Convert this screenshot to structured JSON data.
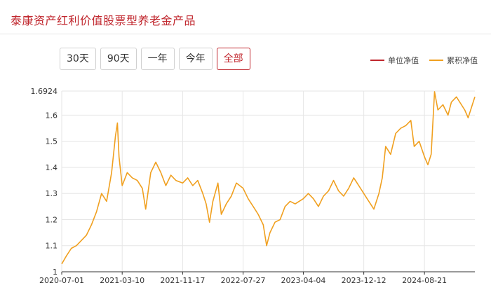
{
  "header": {
    "title": "泰康资产红利价值股票型养老金产品"
  },
  "tabs": [
    {
      "label": "30天",
      "active": false
    },
    {
      "label": "90天",
      "active": false
    },
    {
      "label": "一年",
      "active": false
    },
    {
      "label": "今年",
      "active": false
    },
    {
      "label": "全部",
      "active": true
    }
  ],
  "colors": {
    "accent": "#c0262d",
    "unit_nav": "#c0262d",
    "cumulative_nav": "#f0a020"
  },
  "chart_data": {
    "type": "line",
    "title": "",
    "xlabel": "",
    "ylabel": "",
    "ylim": [
      1,
      1.6924
    ],
    "y_ticks": [
      "1",
      "1.1",
      "1.2",
      "1.3",
      "1.4",
      "1.5",
      "1.6",
      "1.6924"
    ],
    "x_ticks": [
      "2020-07-01",
      "2021-03-10",
      "2021-11-17",
      "2022-07-27",
      "2023-04-04",
      "2023-12-12",
      "2024-08-21"
    ],
    "legend": {
      "position": "top-right"
    },
    "grid": true,
    "series": [
      {
        "name": "单位净值",
        "values": []
      },
      {
        "name": "累积净值",
        "values": [
          [
            "2020-07-01",
            1.03
          ],
          [
            "2020-07-20",
            1.06
          ],
          [
            "2020-08-10",
            1.09
          ],
          [
            "2020-08-31",
            1.1
          ],
          [
            "2020-09-21",
            1.12
          ],
          [
            "2020-10-12",
            1.14
          ],
          [
            "2020-11-02",
            1.18
          ],
          [
            "2020-11-23",
            1.23
          ],
          [
            "2020-12-14",
            1.3
          ],
          [
            "2021-01-04",
            1.27
          ],
          [
            "2021-01-25",
            1.38
          ],
          [
            "2021-02-10",
            1.52
          ],
          [
            "2021-02-18",
            1.57
          ],
          [
            "2021-02-25",
            1.44
          ],
          [
            "2021-03-10",
            1.33
          ],
          [
            "2021-03-31",
            1.38
          ],
          [
            "2021-04-21",
            1.36
          ],
          [
            "2021-05-12",
            1.35
          ],
          [
            "2021-06-02",
            1.32
          ],
          [
            "2021-06-16",
            1.24
          ],
          [
            "2021-07-07",
            1.38
          ],
          [
            "2021-07-28",
            1.42
          ],
          [
            "2021-08-18",
            1.38
          ],
          [
            "2021-09-08",
            1.33
          ],
          [
            "2021-09-29",
            1.37
          ],
          [
            "2021-10-20",
            1.35
          ],
          [
            "2021-11-17",
            1.34
          ],
          [
            "2021-12-08",
            1.36
          ],
          [
            "2021-12-29",
            1.33
          ],
          [
            "2022-01-19",
            1.35
          ],
          [
            "2022-02-09",
            1.3
          ],
          [
            "2022-02-23",
            1.26
          ],
          [
            "2022-03-09",
            1.19
          ],
          [
            "2022-03-23",
            1.27
          ],
          [
            "2022-04-13",
            1.34
          ],
          [
            "2022-04-27",
            1.22
          ],
          [
            "2022-05-18",
            1.26
          ],
          [
            "2022-06-08",
            1.29
          ],
          [
            "2022-06-29",
            1.34
          ],
          [
            "2022-07-27",
            1.32
          ],
          [
            "2022-08-17",
            1.28
          ],
          [
            "2022-09-07",
            1.25
          ],
          [
            "2022-09-28",
            1.22
          ],
          [
            "2022-10-19",
            1.18
          ],
          [
            "2022-11-02",
            1.1
          ],
          [
            "2022-11-16",
            1.15
          ],
          [
            "2022-12-07",
            1.19
          ],
          [
            "2022-12-28",
            1.2
          ],
          [
            "2023-01-18",
            1.25
          ],
          [
            "2023-02-08",
            1.27
          ],
          [
            "2023-03-01",
            1.26
          ],
          [
            "2023-04-04",
            1.28
          ],
          [
            "2023-04-25",
            1.3
          ],
          [
            "2023-05-16",
            1.28
          ],
          [
            "2023-06-06",
            1.25
          ],
          [
            "2023-06-27",
            1.29
          ],
          [
            "2023-07-18",
            1.31
          ],
          [
            "2023-08-08",
            1.35
          ],
          [
            "2023-08-29",
            1.31
          ],
          [
            "2023-09-19",
            1.29
          ],
          [
            "2023-10-10",
            1.32
          ],
          [
            "2023-10-31",
            1.36
          ],
          [
            "2023-11-21",
            1.33
          ],
          [
            "2023-12-12",
            1.3
          ],
          [
            "2024-01-02",
            1.27
          ],
          [
            "2024-01-23",
            1.24
          ],
          [
            "2024-02-13",
            1.3
          ],
          [
            "2024-02-27",
            1.36
          ],
          [
            "2024-03-12",
            1.48
          ],
          [
            "2024-04-02",
            1.45
          ],
          [
            "2024-04-23",
            1.53
          ],
          [
            "2024-05-14",
            1.55
          ],
          [
            "2024-06-04",
            1.56
          ],
          [
            "2024-06-25",
            1.58
          ],
          [
            "2024-07-09",
            1.48
          ],
          [
            "2024-07-30",
            1.5
          ],
          [
            "2024-08-21",
            1.44
          ],
          [
            "2024-09-04",
            1.41
          ],
          [
            "2024-09-18",
            1.45
          ],
          [
            "2024-10-02",
            1.69
          ],
          [
            "2024-10-16",
            1.62
          ],
          [
            "2024-11-06",
            1.64
          ],
          [
            "2024-11-27",
            1.6
          ],
          [
            "2024-12-11",
            1.65
          ],
          [
            "2025-01-01",
            1.67
          ],
          [
            "2025-01-22",
            1.64
          ],
          [
            "2025-02-05",
            1.62
          ],
          [
            "2025-02-19",
            1.59
          ],
          [
            "2025-03-05",
            1.63
          ],
          [
            "2025-03-19",
            1.67
          ]
        ]
      }
    ]
  }
}
